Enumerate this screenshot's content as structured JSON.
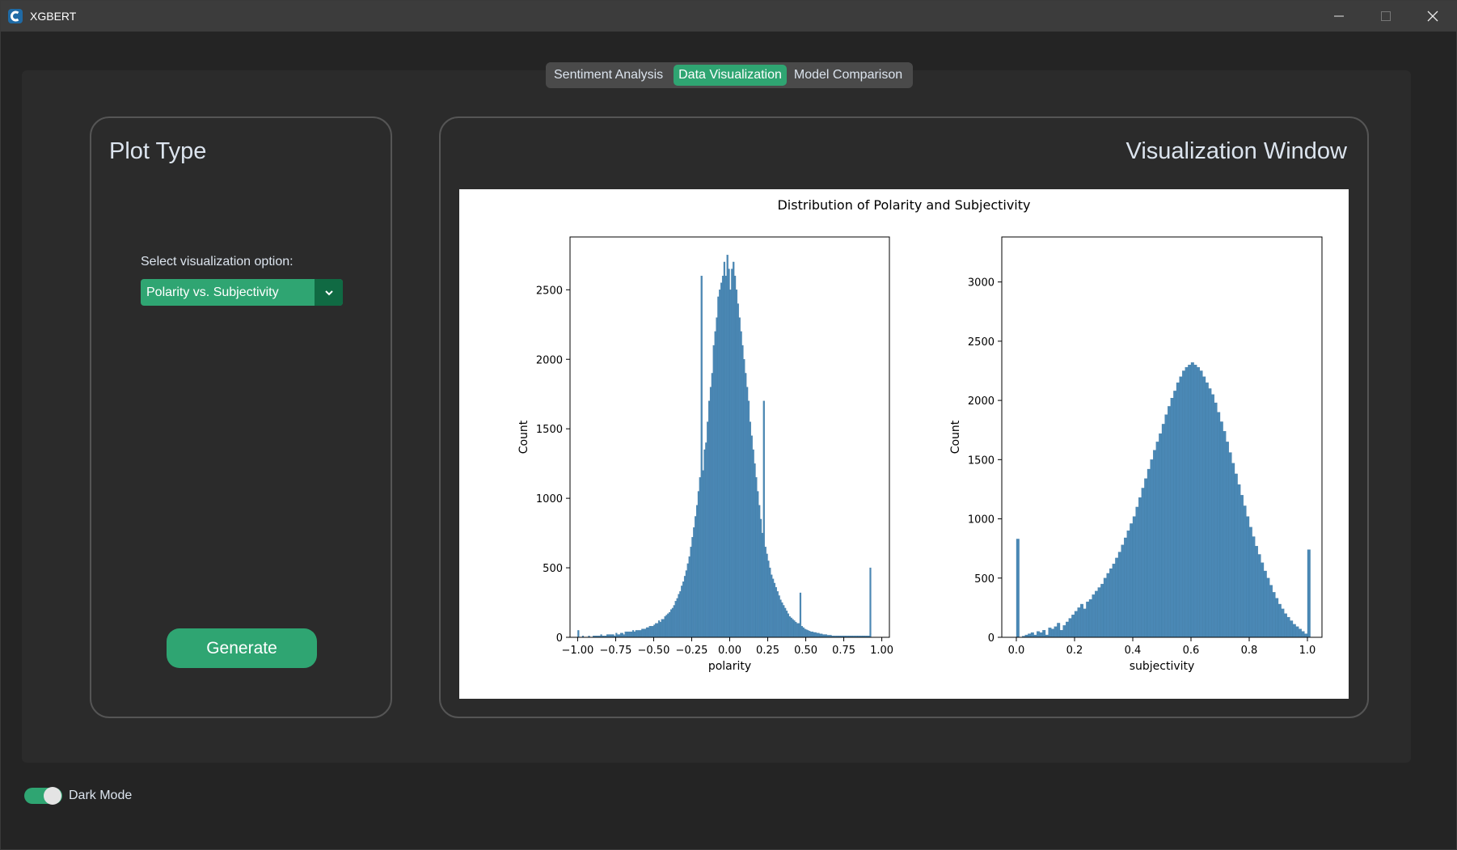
{
  "window": {
    "title": "XGBERT",
    "icon": "app-logo-icon",
    "controls": [
      "minimize-icon",
      "maximize-icon",
      "close-icon"
    ]
  },
  "tabs": [
    {
      "label": "Sentiment Analysis",
      "active": false
    },
    {
      "label": "Data Visualization",
      "active": true
    },
    {
      "label": "Model Comparison",
      "active": false
    }
  ],
  "left_panel": {
    "title": "Plot Type",
    "select_label": "Select visualization option:",
    "select_value": "Polarity vs. Subjectivity",
    "generate_label": "Generate"
  },
  "right_panel": {
    "title": "Visualization Window"
  },
  "footer": {
    "dark_mode_label": "Dark Mode",
    "dark_mode_on": true
  },
  "colors": {
    "accent": "#2fa572",
    "accent_dark": "#106a43",
    "bar": "#4a88b5"
  },
  "chart_data": [
    {
      "type": "bar",
      "title": "Distribution of Polarity and Subjectivity",
      "xlabel": "polarity",
      "ylabel": "Count",
      "xlim": [
        -1.05,
        1.05
      ],
      "ylim": [
        0,
        2880
      ],
      "xticks": [
        -1.0,
        -0.75,
        -0.5,
        -0.25,
        0.0,
        0.25,
        0.5,
        0.75,
        1.0
      ],
      "xtick_labels": [
        "−1.00",
        "−0.75",
        "−0.50",
        "−0.25",
        "0.00",
        "0.25",
        "0.50",
        "0.75",
        "1.00"
      ],
      "yticks": [
        0,
        500,
        1000,
        1500,
        2000,
        2500
      ],
      "bin_start": -1.0,
      "bin_width": 0.01,
      "values": [
        50,
        0,
        0,
        10,
        0,
        0,
        0,
        10,
        0,
        0,
        10,
        10,
        10,
        10,
        10,
        20,
        10,
        10,
        10,
        20,
        20,
        20,
        20,
        20,
        10,
        30,
        20,
        20,
        30,
        30,
        20,
        40,
        40,
        40,
        40,
        40,
        50,
        40,
        50,
        50,
        50,
        50,
        60,
        60,
        60,
        70,
        70,
        80,
        80,
        80,
        90,
        100,
        100,
        120,
        110,
        130,
        130,
        150,
        160,
        170,
        180,
        200,
        210,
        230,
        260,
        280,
        310,
        330,
        370,
        400,
        440,
        480,
        530,
        580,
        650,
        720,
        790,
        870,
        950,
        1050,
        1150,
        2600,
        1200,
        1350,
        1400,
        1550,
        1700,
        1800,
        1900,
        2100,
        2200,
        2300,
        2450,
        2500,
        2550,
        2600,
        2700,
        2600,
        2750,
        2650,
        2500,
        2650,
        2700,
        2600,
        2500,
        2400,
        2300,
        2200,
        2100,
        2000,
        1900,
        1800,
        1700,
        1550,
        1450,
        1350,
        1250,
        1150,
        1050,
        950,
        850,
        750,
        1700,
        650,
        600,
        550,
        500,
        450,
        420,
        390,
        360,
        330,
        300,
        270,
        250,
        230,
        210,
        190,
        170,
        150,
        140,
        130,
        120,
        110,
        100,
        100,
        320,
        80,
        70,
        60,
        55,
        50,
        45,
        40,
        40,
        35,
        35,
        30,
        30,
        25,
        25,
        20,
        20,
        20,
        15,
        15,
        15,
        10,
        10,
        10,
        10,
        10,
        10,
        10,
        10,
        10,
        10,
        10,
        10,
        10,
        10,
        10,
        10,
        10,
        10,
        10,
        10,
        10,
        10,
        10,
        10,
        10,
        500
      ]
    },
    {
      "type": "bar",
      "title": "",
      "xlabel": "subjectivity",
      "ylabel": "Count",
      "xlim": [
        -0.05,
        1.05
      ],
      "ylim": [
        0,
        3380
      ],
      "xticks": [
        0.0,
        0.2,
        0.4,
        0.6,
        0.8,
        1.0
      ],
      "xtick_labels": [
        "0.0",
        "0.2",
        "0.4",
        "0.6",
        "0.8",
        "1.0"
      ],
      "yticks": [
        0,
        500,
        1000,
        1500,
        2000,
        2500,
        3000
      ],
      "bin_start": 0.0,
      "bin_width": 0.01,
      "values": [
        830,
        0,
        10,
        20,
        30,
        40,
        20,
        50,
        40,
        60,
        20,
        80,
        70,
        90,
        120,
        60,
        100,
        130,
        160,
        190,
        220,
        250,
        280,
        240,
        300,
        320,
        360,
        390,
        420,
        450,
        500,
        540,
        580,
        620,
        670,
        720,
        780,
        840,
        900,
        960,
        1020,
        1100,
        1180,
        1260,
        1340,
        1420,
        1500,
        1580,
        1650,
        1720,
        1800,
        1880,
        1950,
        2020,
        2080,
        2150,
        2200,
        2250,
        2280,
        2300,
        2320,
        2300,
        2280,
        2250,
        2200,
        2150,
        2100,
        2050,
        1980,
        1900,
        1820,
        1740,
        1650,
        1560,
        1470,
        1380,
        1290,
        1200,
        1110,
        1020,
        930,
        850,
        770,
        700,
        630,
        560,
        500,
        440,
        380,
        330,
        280,
        240,
        200,
        170,
        140,
        110,
        90,
        70,
        50,
        30,
        740
      ]
    }
  ]
}
